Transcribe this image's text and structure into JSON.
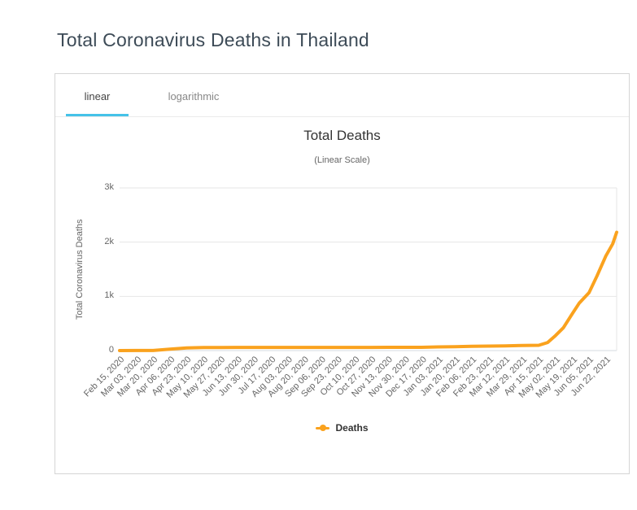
{
  "page": {
    "title": "Total Coronavirus Deaths in Thailand"
  },
  "tabs": [
    {
      "label": "linear",
      "active": true
    },
    {
      "label": "logarithmic",
      "active": false
    }
  ],
  "colors": {
    "accent_tab_underline": "#45c2e8",
    "series_line": "#faa21e",
    "grid_line": "#e6e6e6",
    "axis_line": "#d6dbe0",
    "axis_text": "#666666",
    "title_text": "#3d4b57"
  },
  "chart_data": {
    "type": "line",
    "title": "Total Deaths",
    "subtitle": "(Linear Scale)",
    "xlabel": "",
    "ylabel": "Total Coronavirus Deaths",
    "ylim": [
      0,
      3000
    ],
    "grid": "horizontal",
    "legend_position": "bottom",
    "yticks": [
      {
        "value": 0,
        "label": "0"
      },
      {
        "value": 1000,
        "label": "1k"
      },
      {
        "value": 2000,
        "label": "2k"
      },
      {
        "value": 3000,
        "label": "3k"
      }
    ],
    "x_tick_labels": [
      "Feb 15, 2020",
      "Mar 03, 2020",
      "Mar 20, 2020",
      "Apr 06, 2020",
      "Apr 23, 2020",
      "May 10, 2020",
      "May 27, 2020",
      "Jun 13, 2020",
      "Jun 30, 2020",
      "Jul 17, 2020",
      "Aug 03, 2020",
      "Aug 20, 2020",
      "Sep 06, 2020",
      "Sep 23, 2020",
      "Oct 10, 2020",
      "Oct 27, 2020",
      "Nov 13, 2020",
      "Nov 30, 2020",
      "Dec 17, 2020",
      "Jan 03, 2021",
      "Jan 20, 2021",
      "Feb 06, 2021",
      "Feb 23, 2021",
      "Mar 12, 2021",
      "Mar 29, 2021",
      "Apr 15, 2021",
      "May 02, 2021",
      "May 19, 2021",
      "Jun 05, 2021",
      "Jun 22, 2021"
    ],
    "series": [
      {
        "name": "Deaths",
        "color": "#faa21e",
        "points": [
          [
            "Feb 15, 2020",
            0
          ],
          [
            "Mar 03, 2020",
            1
          ],
          [
            "Mar 20, 2020",
            1
          ],
          [
            "Apr 06, 2020",
            27
          ],
          [
            "Apr 23, 2020",
            50
          ],
          [
            "May 10, 2020",
            56
          ],
          [
            "May 27, 2020",
            57
          ],
          [
            "Jun 13, 2020",
            58
          ],
          [
            "Jun 30, 2020",
            58
          ],
          [
            "Jul 17, 2020",
            58
          ],
          [
            "Aug 03, 2020",
            58
          ],
          [
            "Aug 20, 2020",
            58
          ],
          [
            "Sep 06, 2020",
            58
          ],
          [
            "Sep 23, 2020",
            59
          ],
          [
            "Oct 10, 2020",
            59
          ],
          [
            "Oct 27, 2020",
            59
          ],
          [
            "Nov 13, 2020",
            60
          ],
          [
            "Nov 30, 2020",
            60
          ],
          [
            "Dec 17, 2020",
            60
          ],
          [
            "Jan 03, 2021",
            67
          ],
          [
            "Jan 20, 2021",
            71
          ],
          [
            "Feb 06, 2021",
            80
          ],
          [
            "Feb 23, 2021",
            83
          ],
          [
            "Mar 12, 2021",
            85
          ],
          [
            "Mar 29, 2021",
            94
          ],
          [
            "Apr 15, 2021",
            97
          ],
          [
            "Apr 24, 2021",
            149
          ],
          [
            "May 02, 2021",
            276
          ],
          [
            "May 10, 2021",
            421
          ],
          [
            "May 19, 2021",
            678
          ],
          [
            "May 26, 2021",
            873
          ],
          [
            "Jun 05, 2021",
            1069
          ],
          [
            "Jun 13, 2021",
            1375
          ],
          [
            "Jun 22, 2021",
            1744
          ],
          [
            "Jun 29, 2021",
            1970
          ],
          [
            "Jul 03, 2021",
            2182
          ]
        ]
      }
    ]
  }
}
